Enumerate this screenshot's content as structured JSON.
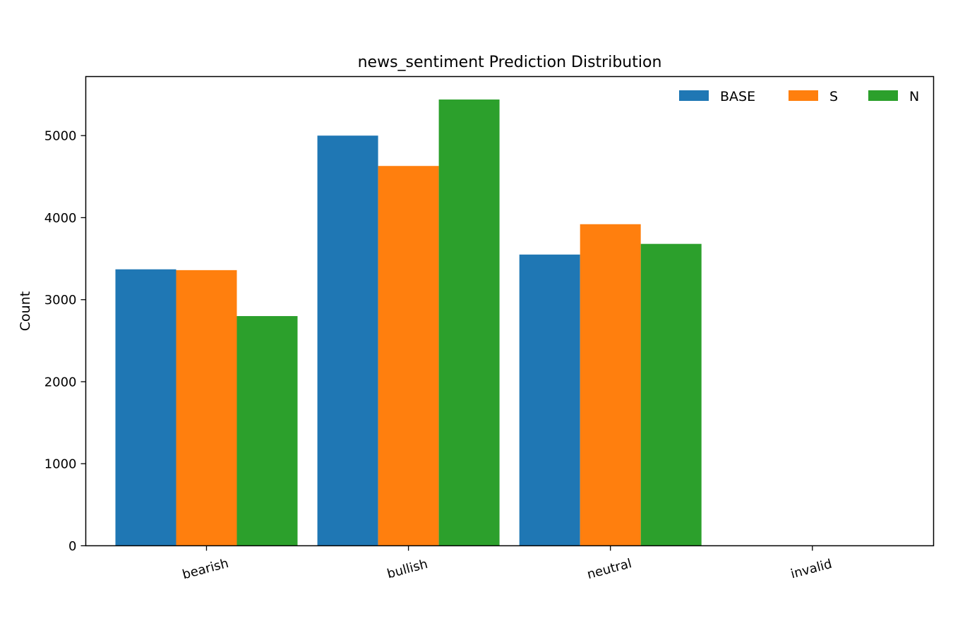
{
  "chart_data": {
    "type": "bar",
    "title": "news_sentiment Prediction Distribution",
    "xlabel": "",
    "ylabel": "Count",
    "categories": [
      "bearish",
      "bullish",
      "neutral",
      "invalid"
    ],
    "series": [
      {
        "name": "BASE",
        "color": "#1f77b4",
        "values": [
          3370,
          5000,
          3550,
          0
        ]
      },
      {
        "name": "S",
        "color": "#ff7f0e",
        "values": [
          3360,
          4630,
          3920,
          0
        ]
      },
      {
        "name": "N",
        "color": "#2ca02c",
        "values": [
          2800,
          5440,
          3680,
          0
        ]
      }
    ],
    "ylim": [
      0,
      5720
    ],
    "yticks": [
      0,
      1000,
      2000,
      3000,
      4000,
      5000
    ],
    "grid": false,
    "legend": "top-right"
  }
}
